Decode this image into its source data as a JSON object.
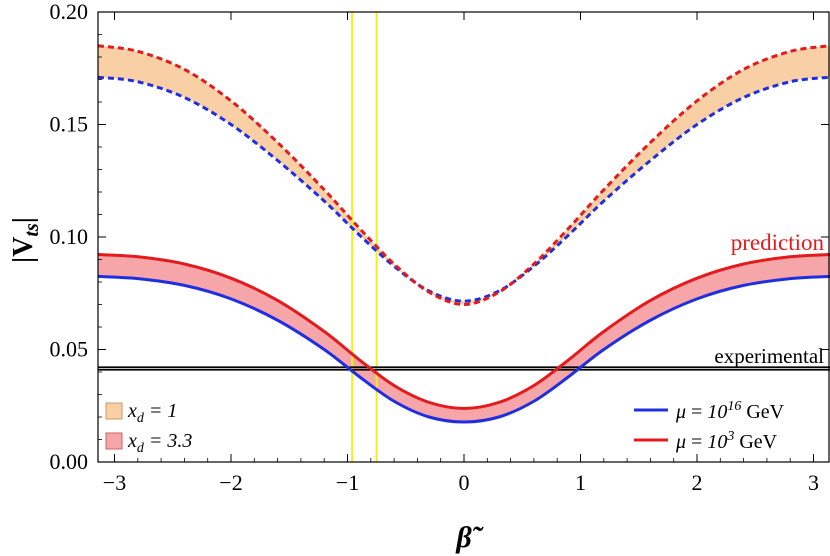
{
  "chart_data": {
    "type": "line",
    "title": "",
    "xlabel": "β̃",
    "ylabel": "|V",
    "ylabel_sub": "ts",
    "ylabel_close": "|",
    "xlim": [
      -3.1416,
      3.1416
    ],
    "ylim": [
      0.0,
      0.2
    ],
    "x_ticks": [
      -3,
      -2,
      -1,
      0,
      1,
      2,
      3
    ],
    "x_tick_labels": [
      "−3",
      "−2",
      "−1",
      "0",
      "1",
      "2",
      "3"
    ],
    "y_ticks": [
      0.0,
      0.05,
      0.1,
      0.15,
      0.2
    ],
    "y_tick_labels": [
      "0.00",
      "0.05",
      "0.10",
      "0.15",
      "0.20"
    ],
    "grid": false,
    "x": [
      -3.1416,
      -2.8,
      -2.4,
      -2.0,
      -1.6,
      -1.2,
      -0.9,
      -0.6,
      -0.3,
      0.0,
      0.3,
      0.6,
      0.9,
      1.2,
      1.6,
      2.0,
      2.4,
      2.8,
      3.1416
    ],
    "series": [
      {
        "name": "μ = 10^16 GeV",
        "band": "x_d = 3.3",
        "style": "solid",
        "color": "#1f2fe0",
        "values": [
          0.0825,
          0.0815,
          0.0785,
          0.0725,
          0.063,
          0.05,
          0.038,
          0.027,
          0.02,
          0.0178,
          0.02,
          0.027,
          0.038,
          0.05,
          0.063,
          0.0725,
          0.0785,
          0.0815,
          0.0825
        ]
      },
      {
        "name": "μ = 10^3 GeV",
        "band": "x_d = 3.3",
        "style": "solid",
        "color": "#e41a1c",
        "values": [
          0.0922,
          0.0912,
          0.088,
          0.0817,
          0.0718,
          0.058,
          0.0455,
          0.034,
          0.0265,
          0.0238,
          0.0265,
          0.034,
          0.0455,
          0.058,
          0.0718,
          0.0817,
          0.088,
          0.0912,
          0.0922
        ]
      },
      {
        "name": "",
        "band": "x_d = 1",
        "style": "dashed",
        "color": "#1f2fe0",
        "values": [
          0.171,
          0.169,
          0.162,
          0.15,
          0.134,
          0.116,
          0.101,
          0.087,
          0.076,
          0.0715,
          0.076,
          0.087,
          0.101,
          0.116,
          0.134,
          0.15,
          0.162,
          0.169,
          0.171
        ]
      },
      {
        "name": "",
        "band": "x_d = 1",
        "style": "dashed",
        "color": "#e41a1c",
        "values": [
          0.185,
          0.1825,
          0.1745,
          0.1605,
          0.142,
          0.121,
          0.104,
          0.088,
          0.0755,
          0.07,
          0.0755,
          0.088,
          0.104,
          0.121,
          0.142,
          0.1605,
          0.1745,
          0.1825,
          0.185
        ]
      }
    ],
    "bands": [
      {
        "name": "x_d = 1",
        "color": "#f9cfa5",
        "lower_series": 2,
        "upper_series": 3
      },
      {
        "name": "x_d = 3.3",
        "color": "#f6a5a8",
        "lower_series": 0,
        "upper_series": 1
      }
    ],
    "hlines": [
      {
        "y": 0.0421,
        "color": "#000000"
      },
      {
        "y": 0.041,
        "color": "#000000"
      }
    ],
    "vlines": [
      {
        "x": -0.96,
        "color": "#f3ee23"
      },
      {
        "x": -0.75,
        "color": "#f3ee23"
      }
    ],
    "annotations": [
      {
        "text": "prediction",
        "color": "#e41a1c"
      },
      {
        "text": "experimental",
        "color": "#000000"
      }
    ],
    "legend_bands": {
      "placement": "bottom-left",
      "items": [
        {
          "var": "x",
          "sub": "d",
          "rest": " = 1",
          "color": "#f9cfa5",
          "edge": "#cc9a66"
        },
        {
          "var": "x",
          "sub": "d",
          "rest": " = 3.3",
          "color": "#f6a5a8",
          "edge": "#c4666a"
        }
      ]
    },
    "legend_lines": {
      "placement": "bottom-right",
      "items": [
        {
          "mu": "μ",
          "eq": " = ",
          "base": "10",
          "exp": "16",
          "unit": " GeV",
          "color": "#1f2fe0"
        },
        {
          "mu": "μ",
          "eq": " = ",
          "base": "10",
          "exp": "3",
          "unit": " GeV",
          "color": "#e41a1c"
        }
      ]
    }
  }
}
